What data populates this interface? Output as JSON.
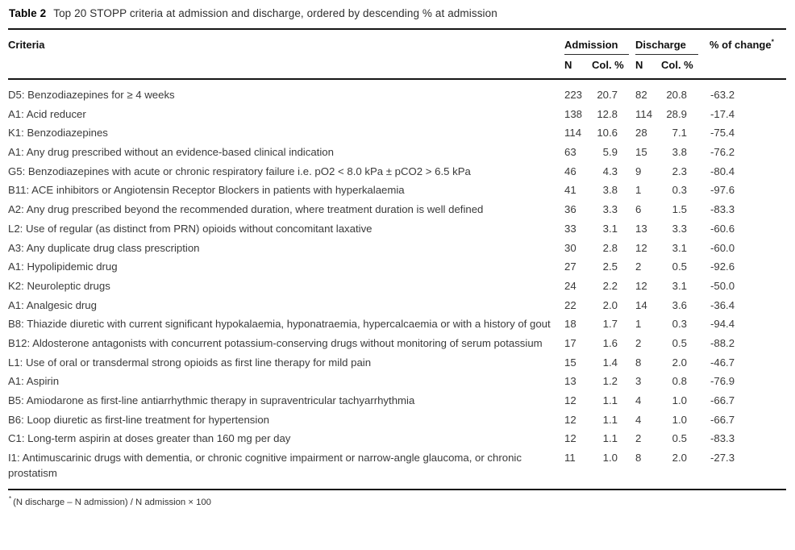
{
  "caption": {
    "label": "Table 2",
    "text": "Top 20 STOPP criteria at admission and discharge, ordered by descending % at admission"
  },
  "table": {
    "headers": {
      "criteria": "Criteria",
      "admission": "Admission",
      "discharge": "Discharge",
      "pct_change": "% of change",
      "pct_change_marker": "*",
      "n": "N",
      "col_pct": "Col. %"
    },
    "rows": [
      {
        "criteria": "D5: Benzodiazepines for ≥ 4 weeks",
        "adm_n": "223",
        "adm_pct": "20.7",
        "dis_n": "82",
        "dis_pct": "20.8",
        "change": "-63.2"
      },
      {
        "criteria": "A1: Acid reducer",
        "adm_n": "138",
        "adm_pct": "12.8",
        "dis_n": "114",
        "dis_pct": "28.9",
        "change": "-17.4"
      },
      {
        "criteria": "K1: Benzodiazepines",
        "adm_n": "114",
        "adm_pct": "10.6",
        "dis_n": "28",
        "dis_pct": "7.1",
        "change": "-75.4"
      },
      {
        "criteria": "A1: Any drug prescribed without an evidence-based clinical indication",
        "adm_n": "63",
        "adm_pct": "5.9",
        "dis_n": "15",
        "dis_pct": "3.8",
        "change": "-76.2"
      },
      {
        "criteria": "G5: Benzodiazepines with acute or chronic respiratory failure i.e. pO2 < 8.0 kPa ± pCO2 > 6.5 kPa",
        "adm_n": "46",
        "adm_pct": "4.3",
        "dis_n": "9",
        "dis_pct": "2.3",
        "change": "-80.4"
      },
      {
        "criteria": "B11: ACE inhibitors or Angiotensin Receptor Blockers in patients with hyperkalaemia",
        "adm_n": "41",
        "adm_pct": "3.8",
        "dis_n": "1",
        "dis_pct": "0.3",
        "change": "-97.6"
      },
      {
        "criteria": "A2: Any drug prescribed beyond the recommended duration, where treatment duration is well defined",
        "adm_n": "36",
        "adm_pct": "3.3",
        "dis_n": "6",
        "dis_pct": "1.5",
        "change": "-83.3"
      },
      {
        "criteria": "L2: Use of regular (as distinct from PRN) opioids without concomitant laxative",
        "adm_n": "33",
        "adm_pct": "3.1",
        "dis_n": "13",
        "dis_pct": "3.3",
        "change": "-60.6"
      },
      {
        "criteria": "A3: Any duplicate drug class prescription",
        "adm_n": "30",
        "adm_pct": "2.8",
        "dis_n": "12",
        "dis_pct": "3.1",
        "change": "-60.0"
      },
      {
        "criteria": "A1: Hypolipidemic drug",
        "adm_n": "27",
        "adm_pct": "2.5",
        "dis_n": "2",
        "dis_pct": "0.5",
        "change": "-92.6"
      },
      {
        "criteria": "K2: Neuroleptic drugs",
        "adm_n": "24",
        "adm_pct": "2.2",
        "dis_n": "12",
        "dis_pct": "3.1",
        "change": "-50.0"
      },
      {
        "criteria": "A1: Analgesic drug",
        "adm_n": "22",
        "adm_pct": "2.0",
        "dis_n": "14",
        "dis_pct": "3.6",
        "change": "-36.4"
      },
      {
        "criteria": "B8: Thiazide diuretic with current significant hypokalaemia, hyponatraemia, hypercalcaemia or with a history of gout",
        "adm_n": "18",
        "adm_pct": "1.7",
        "dis_n": "1",
        "dis_pct": "0.3",
        "change": "-94.4"
      },
      {
        "criteria": "B12: Aldosterone antagonists with concurrent potassium-conserving drugs without monitoring of serum potassium",
        "adm_n": "17",
        "adm_pct": "1.6",
        "dis_n": "2",
        "dis_pct": "0.5",
        "change": "-88.2"
      },
      {
        "criteria": "L1: Use of oral or transdermal strong opioids as first line therapy for mild pain",
        "adm_n": "15",
        "adm_pct": "1.4",
        "dis_n": "8",
        "dis_pct": "2.0",
        "change": "-46.7"
      },
      {
        "criteria": "A1: Aspirin",
        "adm_n": "13",
        "adm_pct": "1.2",
        "dis_n": "3",
        "dis_pct": "0.8",
        "change": "-76.9"
      },
      {
        "criteria": "B5: Amiodarone as first-line antiarrhythmic therapy in supraventricular tachyarrhythmia",
        "adm_n": "12",
        "adm_pct": "1.1",
        "dis_n": "4",
        "dis_pct": "1.0",
        "change": "-66.7"
      },
      {
        "criteria": "B6: Loop diuretic as first-line treatment for hypertension",
        "adm_n": "12",
        "adm_pct": "1.1",
        "dis_n": "4",
        "dis_pct": "1.0",
        "change": "-66.7"
      },
      {
        "criteria": "C1: Long-term aspirin at doses greater than 160 mg per day",
        "adm_n": "12",
        "adm_pct": "1.1",
        "dis_n": "2",
        "dis_pct": "0.5",
        "change": "-83.3"
      },
      {
        "criteria": "I1: Antimuscarinic drugs with dementia, or chronic cognitive impairment or narrow-angle glaucoma, or chronic prostatism",
        "adm_n": "11",
        "adm_pct": "1.0",
        "dis_n": "8",
        "dis_pct": "2.0",
        "change": "-27.3"
      }
    ]
  },
  "footnote": {
    "marker": "*",
    "text": "(N discharge – N admission) / N admission × 100"
  }
}
